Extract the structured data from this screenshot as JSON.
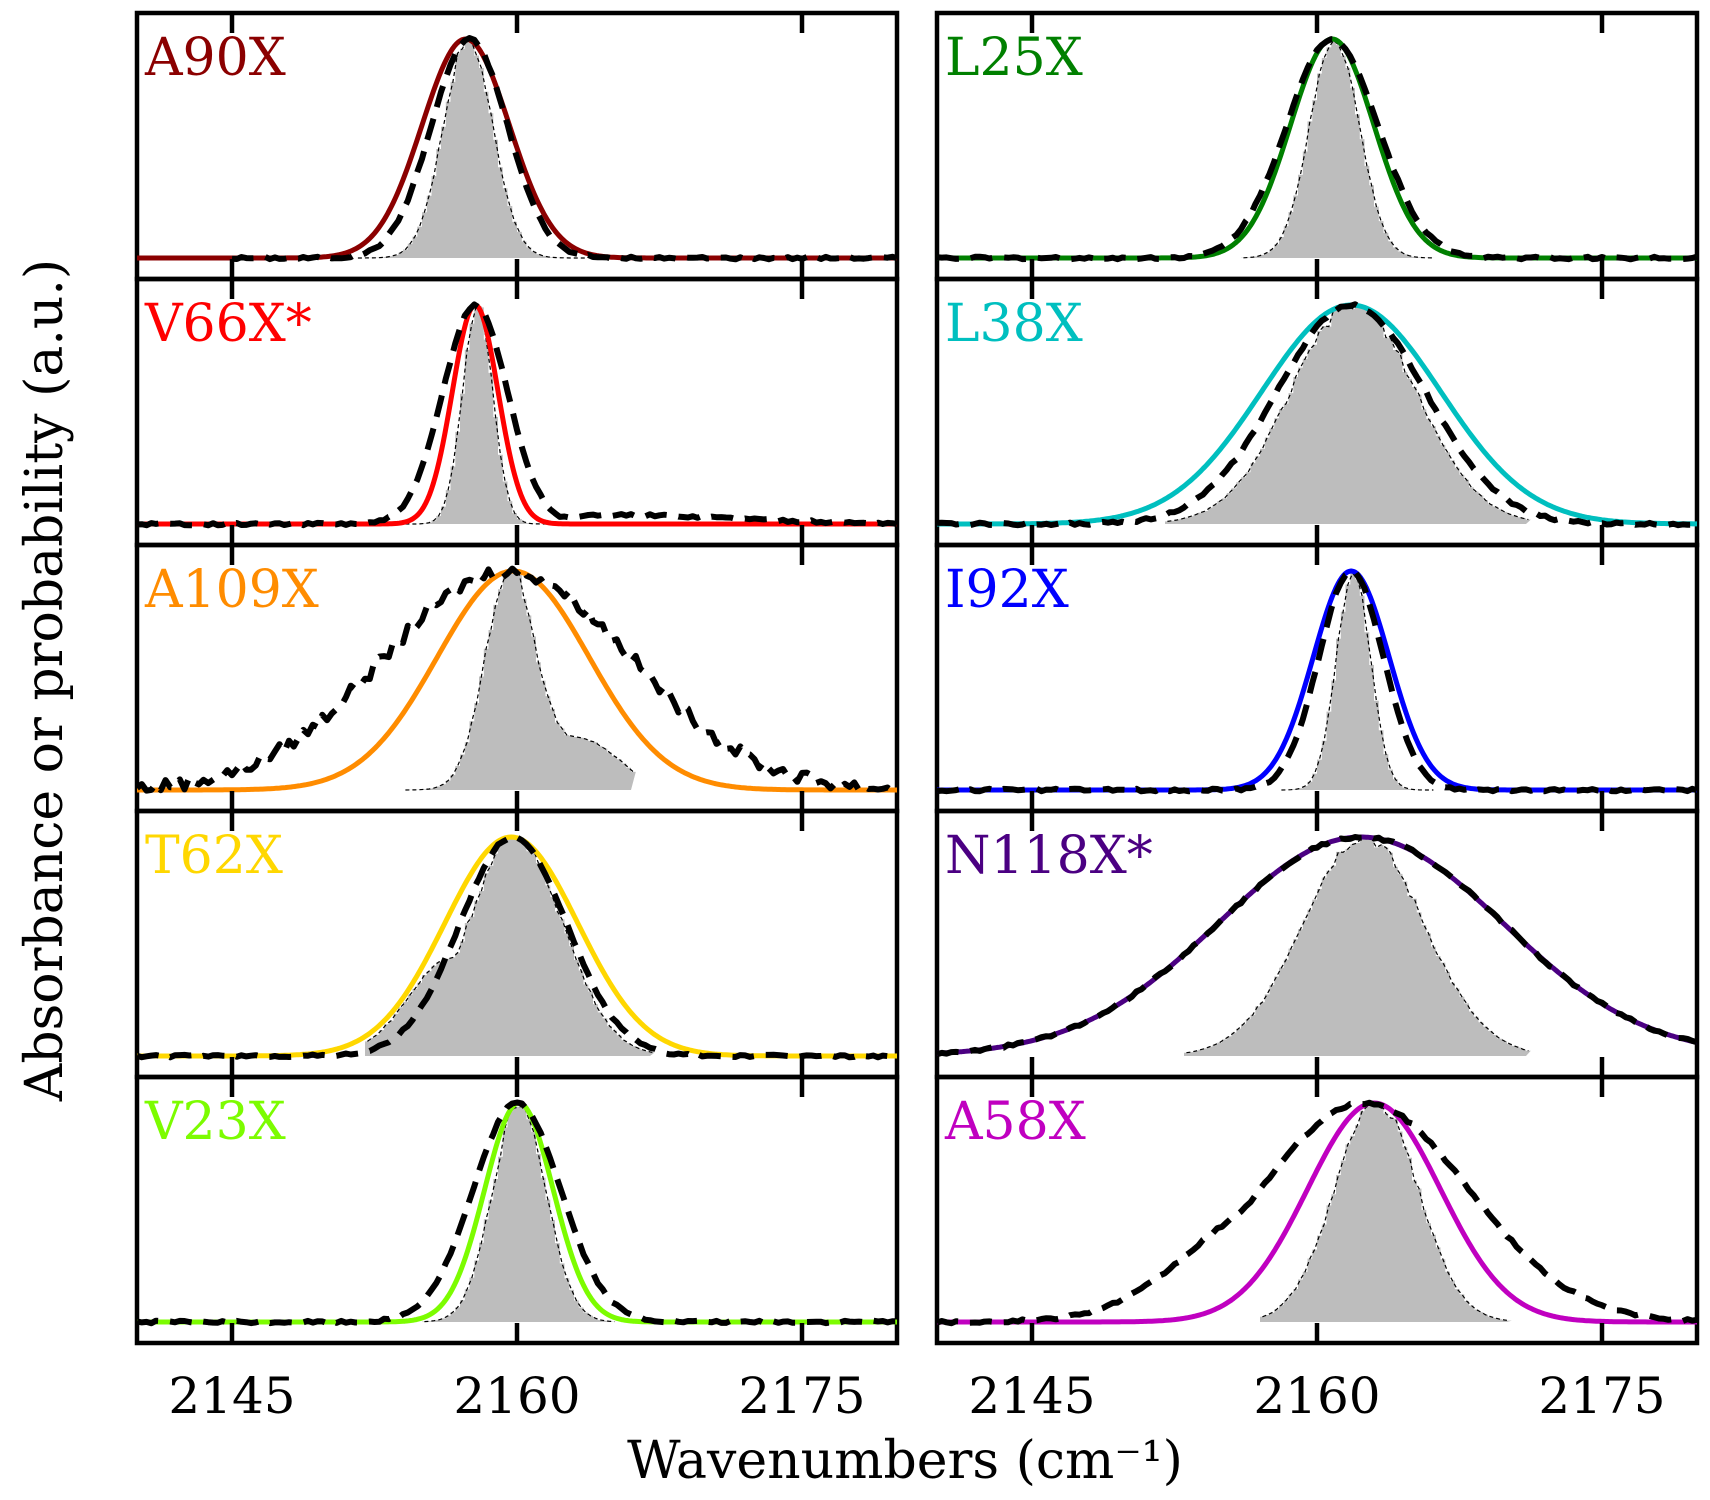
{
  "figure": {
    "xlabel": "Wavenumbers (cm⁻¹)",
    "ylabel": "Absorbance or probability (a.u.)"
  },
  "chart_data": {
    "type": "line",
    "xlim": [
      2140,
      2180
    ],
    "xticks": [
      2145,
      2160,
      2175
    ],
    "xtick_labels": [
      "2145",
      "2160",
      "2175"
    ],
    "y_ticks_shown": false,
    "grid": false,
    "legend": "none",
    "curve_styles": {
      "experiment": "black dashed line",
      "histogram": "gray filled histogram with thin dashed outline",
      "fit": "solid line in panel color"
    },
    "panels": [
      {
        "label": "A90X",
        "color": "#8b0000",
        "column": 0,
        "row": 0,
        "fit": {
          "center": 2157.3,
          "sigma": 2.3
        },
        "hist": {
          "center": 2157.3,
          "sigma": 1.3,
          "range": [
            2151.5,
            2163.5
          ]
        },
        "exp": {
          "center": 2157.5,
          "sigma": 2.0,
          "range": [
            2145,
            2180
          ]
        }
      },
      {
        "label": "V66X*",
        "color": "#ff0000",
        "column": 0,
        "row": 1,
        "fit": {
          "center": 2157.8,
          "sigma": 1.2
        },
        "hist": {
          "center": 2157.8,
          "sigma": 0.8,
          "range": [
            2154,
            2162.5
          ]
        },
        "exp": {
          "center": 2157.8,
          "sigma": 1.7,
          "range": [
            2140,
            2180
          ]
        }
      },
      {
        "label": "A109X",
        "color": "#ff8c00",
        "column": 0,
        "row": 2,
        "fit": {
          "center": 2159.8,
          "sigma": 4.0
        },
        "hist": {
          "center": 2159.5,
          "sigma": 1.3,
          "range": [
            2154,
            2166
          ]
        },
        "exp": {
          "center": 2159.5,
          "sigma": 6.5,
          "range": [
            2140,
            2180
          ]
        }
      },
      {
        "label": "T62X",
        "color": "#ffd700",
        "column": 0,
        "row": 3,
        "fit": {
          "center": 2159.7,
          "sigma": 3.5
        },
        "hist": {
          "center": 2159.8,
          "sigma": 2.5,
          "range": [
            2152,
            2167
          ]
        },
        "exp": {
          "center": 2159.8,
          "sigma": 2.8,
          "range": [
            2140,
            2180
          ]
        }
      },
      {
        "label": "V23X",
        "color": "#7cfc00",
        "column": 0,
        "row": 4,
        "fit": {
          "center": 2160.1,
          "sigma": 1.8
        },
        "hist": {
          "center": 2160.0,
          "sigma": 1.4,
          "range": [
            2155,
            2165
          ]
        },
        "exp": {
          "center": 2160.0,
          "sigma": 2.3,
          "range": [
            2140,
            2180
          ]
        }
      },
      {
        "label": "L25X",
        "color": "#008000",
        "column": 1,
        "row": 0,
        "fit": {
          "center": 2160.8,
          "sigma": 2.2
        },
        "hist": {
          "center": 2160.8,
          "sigma": 1.3,
          "range": [
            2156,
            2166
          ]
        },
        "exp": {
          "center": 2160.8,
          "sigma": 2.4,
          "range": [
            2140,
            2180
          ]
        }
      },
      {
        "label": "L38X",
        "color": "#00bfbf",
        "column": 1,
        "row": 1,
        "fit": {
          "center": 2161.8,
          "sigma": 4.7
        },
        "hist": {
          "center": 2161.8,
          "sigma": 3.3,
          "range": [
            2152,
            2171
          ]
        },
        "exp": {
          "center": 2161.8,
          "sigma": 3.9,
          "range": [
            2140,
            2180
          ]
        }
      },
      {
        "label": "I92X",
        "color": "#0000ff",
        "column": 1,
        "row": 2,
        "fit": {
          "center": 2161.8,
          "sigma": 2.0
        },
        "hist": {
          "center": 2161.8,
          "sigma": 0.9,
          "range": [
            2158,
            2166
          ]
        },
        "exp": {
          "center": 2161.8,
          "sigma": 1.7,
          "range": [
            2140,
            2180
          ]
        }
      },
      {
        "label": "N118X*",
        "color": "#4b0082",
        "column": 1,
        "row": 3,
        "fit": {
          "center": 2162.3,
          "sigma": 7.5
        },
        "hist": {
          "center": 2162.3,
          "sigma": 3.2,
          "range": [
            2153,
            2171
          ]
        },
        "exp": {
          "center": 2162.3,
          "sigma": 7.5,
          "range": [
            2140,
            2180
          ]
        }
      },
      {
        "label": "A58X",
        "color": "#c000c0",
        "column": 1,
        "row": 4,
        "fit": {
          "center": 2163.0,
          "sigma": 3.5
        },
        "hist": {
          "center": 2163.0,
          "sigma": 2.2,
          "range": [
            2157,
            2170
          ]
        },
        "exp": {
          "center": 2162.5,
          "sigma": 5.5,
          "range": [
            2140,
            2180
          ]
        }
      }
    ]
  }
}
